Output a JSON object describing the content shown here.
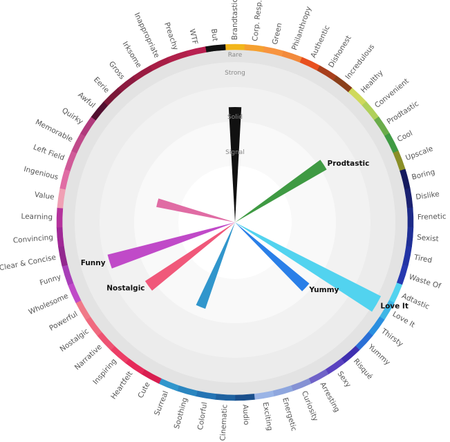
{
  "chart_data": {
    "type": "radial-bar",
    "rings": [
      "Rare",
      "Strong",
      "Solid",
      "Signal"
    ],
    "categories": [
      {
        "name": "Brandtastic",
        "color": "#f2b61b"
      },
      {
        "name": "Corp. Resp.",
        "color": "#f5a030"
      },
      {
        "name": "Green",
        "color": "#f79440"
      },
      {
        "name": "Philanthropy",
        "color": "#f28a3c"
      },
      {
        "name": "Authentic",
        "color": "#e8501f"
      },
      {
        "name": "Dishonest",
        "color": "#a83f1c"
      },
      {
        "name": "Incredulous",
        "color": "#8a3f1a"
      },
      {
        "name": "Healthy",
        "color": "#cfd95b"
      },
      {
        "name": "Convenient",
        "color": "#b0d05a"
      },
      {
        "name": "Prodtastic",
        "color": "#6aac4a"
      },
      {
        "name": "Cool",
        "color": "#3f9a43"
      },
      {
        "name": "Upscale",
        "color": "#8a8f28"
      },
      {
        "name": "Boring",
        "color": "#151a5e"
      },
      {
        "name": "Dislike",
        "color": "#1a2170"
      },
      {
        "name": "Frenetic",
        "color": "#1c2a88"
      },
      {
        "name": "Sexist",
        "color": "#1f2f96"
      },
      {
        "name": "Tired",
        "color": "#2233a4"
      },
      {
        "name": "Waste Of",
        "color": "#2638b0"
      },
      {
        "name": "Adtastic",
        "color": "#52d3ef"
      },
      {
        "name": "Love It",
        "color": "#3fb6e6"
      },
      {
        "name": "Thirsty",
        "color": "#2a8fe0"
      },
      {
        "name": "Yummy",
        "color": "#2a6fd6"
      },
      {
        "name": "Risqué",
        "color": "#3f2fb0"
      },
      {
        "name": "Sexy",
        "color": "#5a42c0"
      },
      {
        "name": "Arresting",
        "color": "#6f62c8"
      },
      {
        "name": "Curiosity",
        "color": "#8592d4"
      },
      {
        "name": "Energetic",
        "color": "#8ea6de"
      },
      {
        "name": "Exciting",
        "color": "#9ab4e6"
      },
      {
        "name": "Audio",
        "color": "#1a4f8c"
      },
      {
        "name": "Cinematic",
        "color": "#1f62a0"
      },
      {
        "name": "Colorful",
        "color": "#2474b4"
      },
      {
        "name": "Soothing",
        "color": "#2b86c0"
      },
      {
        "name": "Surreal",
        "color": "#3196cc"
      },
      {
        "name": "Cute",
        "color": "#d81e50"
      },
      {
        "name": "Heartfelt",
        "color": "#e62a5a"
      },
      {
        "name": "Inspiring",
        "color": "#ec3e66"
      },
      {
        "name": "Narrative",
        "color": "#ee5272"
      },
      {
        "name": "Nostalgic",
        "color": "#f06a7f"
      },
      {
        "name": "Powerful",
        "color": "#f07a88"
      },
      {
        "name": "Wholesome",
        "color": "#c04ac8"
      },
      {
        "name": "Funny",
        "color": "#a83fb8"
      },
      {
        "name": "Clear & Concise",
        "color": "#92288e"
      },
      {
        "name": "Convincing",
        "color": "#a02896"
      },
      {
        "name": "Learning",
        "color": "#b4329c"
      },
      {
        "name": "Value",
        "color": "#f0a0b4"
      },
      {
        "name": "Ingenious",
        "color": "#e06ca4"
      },
      {
        "name": "Left Field",
        "color": "#d05a98"
      },
      {
        "name": "Memorable",
        "color": "#c04a8a"
      },
      {
        "name": "Quirky",
        "color": "#b03a7c"
      },
      {
        "name": "Awful",
        "color": "#521030"
      },
      {
        "name": "Eerie",
        "color": "#7a1838"
      },
      {
        "name": "Gross",
        "color": "#8c1a40"
      },
      {
        "name": "Irksome",
        "color": "#9a1c42"
      },
      {
        "name": "Inappropriate",
        "color": "#a81e46"
      },
      {
        "name": "Preachy",
        "color": "#b0204a"
      },
      {
        "name": "WTF",
        "color": "#b82050"
      },
      {
        "name": "But",
        "color": "#111111"
      }
    ],
    "bars": [
      {
        "category": "Brandtastic",
        "value": 0.72,
        "label": "",
        "color": "#111111"
      },
      {
        "category": "Prodtastic",
        "value": 0.66,
        "label": "Prodtastic",
        "color": "#3f9a43"
      },
      {
        "category": "Love It",
        "value": 1.02,
        "label": "Love It",
        "color": "#52d3ef"
      },
      {
        "category": "Yummy",
        "value": 0.6,
        "label": "Yummy",
        "color": "#2a7fe8"
      },
      {
        "category": "Surreal",
        "value": 0.57,
        "label": "",
        "color": "#3196cc"
      },
      {
        "category": "Nostalgic",
        "value": 0.67,
        "label": "Nostalgic",
        "color": "#f0587a"
      },
      {
        "category": "Funny",
        "value": 0.82,
        "label": "Funny",
        "color": "#c04ac8"
      },
      {
        "category": "Ingenious",
        "value": 0.5,
        "label": "",
        "color": "#e06ca4"
      }
    ]
  }
}
